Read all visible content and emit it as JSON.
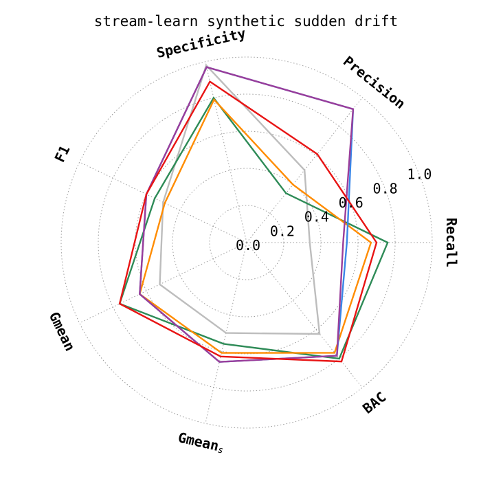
{
  "chart_data": {
    "type": "radar",
    "title": "stream-learn synthetic sudden drift",
    "axes": [
      "Recall",
      "Precision",
      "Specificity",
      "F1",
      "Gmean",
      "Gmeans",
      "BAC"
    ],
    "axis_display": [
      {
        "base": "Recall",
        "sub": ""
      },
      {
        "base": "Precision",
        "sub": ""
      },
      {
        "base": "Specificity",
        "sub": ""
      },
      {
        "base": "F1",
        "sub": ""
      },
      {
        "base": "Gmean",
        "sub": ""
      },
      {
        "base": "Gmean",
        "sub": "s"
      },
      {
        "base": "BAC",
        "sub": ""
      }
    ],
    "rlim": [
      0,
      1
    ],
    "rticks": [
      0.0,
      0.2,
      0.4,
      0.6,
      0.8,
      1.0
    ],
    "rtick_labels": [
      "0.0",
      "0.2",
      "0.4",
      "0.6",
      "0.8",
      "1.0"
    ],
    "grid": true,
    "series": [
      {
        "color": "#bdbdbd",
        "values": [
          0.34,
          0.5,
          0.98,
          0.5,
          0.52,
          0.5,
          0.63
        ]
      },
      {
        "color": "#2e8b57",
        "values": [
          0.76,
          0.34,
          0.8,
          0.55,
          0.76,
          0.56,
          0.8
        ]
      },
      {
        "color": "#ff8c00",
        "values": [
          0.67,
          0.4,
          0.79,
          0.49,
          0.64,
          0.61,
          0.76
        ]
      },
      {
        "color": "#3a86e8",
        "values": [
          0.54,
          0.92,
          0.97,
          0.6,
          0.64,
          0.66,
          0.78
        ]
      },
      {
        "color": "#9a3d9a",
        "values": [
          0.52,
          0.92,
          0.97,
          0.6,
          0.64,
          0.66,
          0.78
        ]
      },
      {
        "color": "#e81414",
        "values": [
          0.7,
          0.61,
          0.89,
          0.6,
          0.76,
          0.63,
          0.82
        ]
      }
    ]
  }
}
